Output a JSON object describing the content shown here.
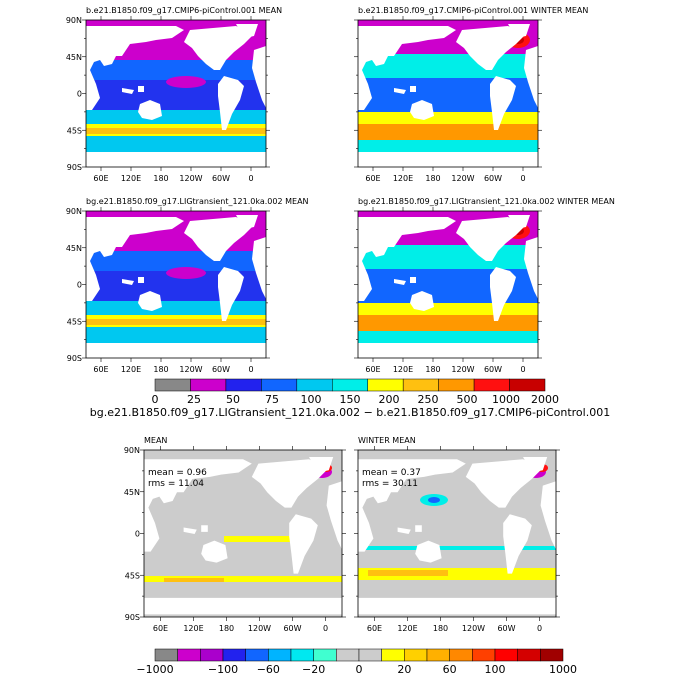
{
  "panels": [
    {
      "title": "b.e21.B1850.f09_g17.CMIP6-piControl.001 MEAN"
    },
    {
      "title": "b.e21.B1850.f09_g17.CMIP6-piControl.001 WINTER MEAN"
    },
    {
      "title": "bg.e21.B1850.f09_g17.LIGtransient_121.0ka.002 MEAN"
    },
    {
      "title": "bg.e21.B1850.f09_g17.LIGtransient_121.0ka.002 WINTER MEAN"
    },
    {
      "title": "MEAN",
      "stat_mean": "mean = 0.96",
      "stat_rms": "rms = 11.04"
    },
    {
      "title": "WINTER MEAN",
      "stat_mean": "mean = 0.37",
      "stat_rms": "rms = 30.11"
    }
  ],
  "axes": {
    "lat_ticks": [
      "90N",
      "45N",
      "0",
      "45S",
      "90S"
    ],
    "lon_ticks": [
      "60E",
      "120E",
      "180",
      "120W",
      "60W",
      "0"
    ]
  },
  "colorbar_top": {
    "labels": [
      "0",
      "25",
      "50",
      "75",
      "100",
      "150",
      "200",
      "250",
      "500",
      "1000",
      "2000"
    ],
    "colors": [
      "#888888",
      "#cc00cc",
      "#2222ee",
      "#1166ff",
      "#00c8f0",
      "#00eee8",
      "#ffff00",
      "#ffc010",
      "#ff9800",
      "#ff1010",
      "#c80000"
    ]
  },
  "difference_title": "bg.e21.B1850.f09_g17.LIGtransient_121.0ka.002 − b.e21.B1850.f09_g17.CMIP6-piControl.001",
  "colorbar_bottom": {
    "labels": [
      "−1000",
      "−100",
      "−60",
      "−20",
      "0",
      "20",
      "60",
      "100",
      "1000"
    ],
    "colors": [
      "#888888",
      "#cc00cc",
      "#aa00cc",
      "#2222ee",
      "#1166ff",
      "#00b4ff",
      "#00e8f0",
      "#40ffd0",
      "#cccccc",
      "#cccccc",
      "#ffff00",
      "#ffd000",
      "#ffb000",
      "#ff8800",
      "#ff4000",
      "#ff0000",
      "#d40000",
      "#a00000"
    ]
  },
  "colors": {
    "land": "#ffffff",
    "ocean_zero": "#cccccc"
  }
}
